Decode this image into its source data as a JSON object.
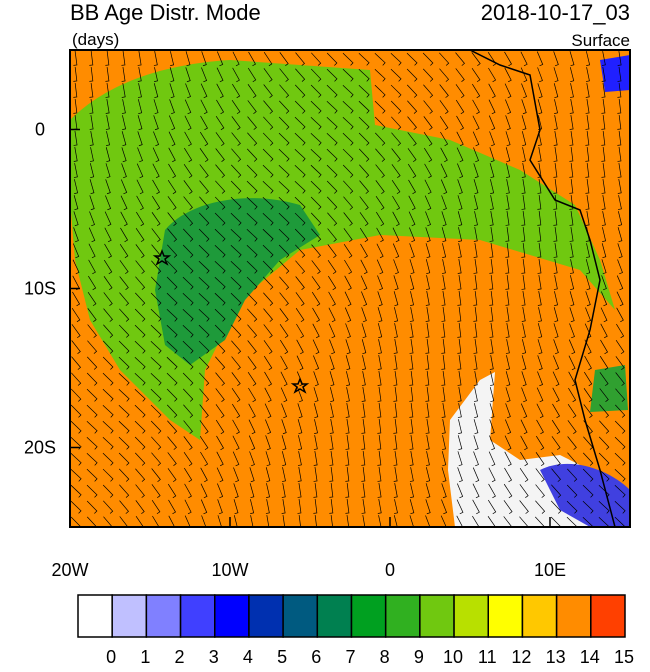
{
  "header": {
    "title": "BB Age Distr. Mode",
    "units": "(days)",
    "date": "2018-10-17_03",
    "level": "Surface"
  },
  "map": {
    "lon_range": [
      -20,
      15
    ],
    "lat_range": [
      -25,
      5
    ],
    "xticks": [
      {
        "value": -20,
        "label": "20W"
      },
      {
        "value": -10,
        "label": "10W"
      },
      {
        "value": 0,
        "label": "0"
      },
      {
        "value": 10,
        "label": "10E"
      }
    ],
    "yticks": [
      {
        "value": 0,
        "label": "0"
      },
      {
        "value": -10,
        "label": "10S"
      },
      {
        "value": -20,
        "label": "20S"
      }
    ]
  },
  "colorbar": {
    "labels": [
      0,
      1,
      2,
      3,
      4,
      5,
      6,
      7,
      8,
      9,
      10,
      11,
      12,
      13,
      14,
      15
    ],
    "colors": [
      "#ffffff",
      "#c0c0ff",
      "#8080ff",
      "#4040ff",
      "#0000ff",
      "#0030b0",
      "#005a80",
      "#008050",
      "#00a020",
      "#30b020",
      "#70c810",
      "#b8e000",
      "#ffff00",
      "#ffc800",
      "#ff8c00",
      "#ff4000"
    ]
  }
}
